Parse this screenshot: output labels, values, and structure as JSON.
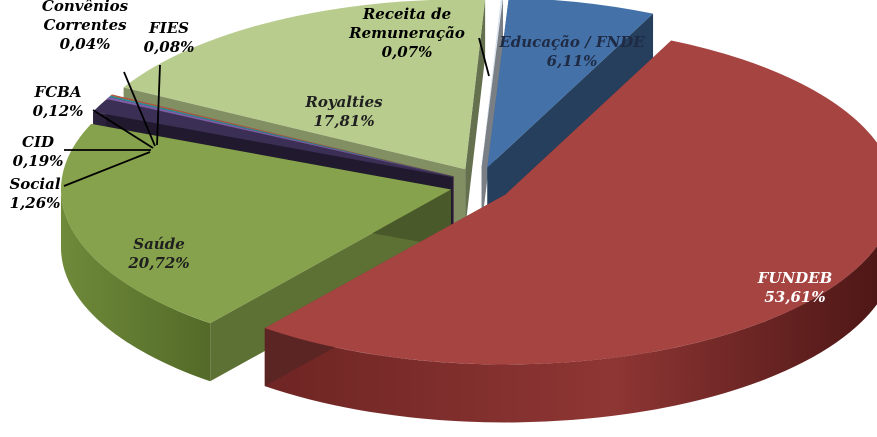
{
  "chart_data": {
    "type": "pie",
    "title": "",
    "slices": [
      {
        "name": "Educação / FNDE",
        "label": "Educação / FNDE",
        "value": 6.11,
        "value_label": "6,11%",
        "color": "#4472a8"
      },
      {
        "name": "FUNDEB",
        "label": "FUNDEB",
        "value": 53.61,
        "value_label": "53,61%",
        "color": "#a64441"
      },
      {
        "name": "Saúde",
        "label": "Saúde",
        "value": 20.72,
        "value_label": "20,72%",
        "color": "#86a24c"
      },
      {
        "name": "Social",
        "label": "Social",
        "value": 1.26,
        "value_label": "1,26%",
        "color": "#3c2f55"
      },
      {
        "name": "CID",
        "label": "CID",
        "value": 0.19,
        "value_label": "0,19%",
        "color": "#7f5fa8"
      },
      {
        "name": "FCBA",
        "label": "FCBA",
        "value": 0.12,
        "value_label": "0,12%",
        "color": "#2e8e9c"
      },
      {
        "name": "Convênios Correntes",
        "label": "Convênios Correntes",
        "value": 0.04,
        "value_label": "0,04%",
        "color": "#d08030"
      },
      {
        "name": "FIES",
        "label": "FIES",
        "value": 0.08,
        "value_label": "0,08%",
        "color": "#c0504d"
      },
      {
        "name": "Royalties",
        "label": "Royalties",
        "value": 17.81,
        "value_label": "17,81%",
        "color": "#b8cc8e"
      },
      {
        "name": "Receita de Remuneração",
        "label": "Receita de Remuneração",
        "value": 0.07,
        "value_label": "0,07%",
        "color": "#dce6f2"
      }
    ],
    "legend": "none",
    "style": "3d-exploded-pie"
  }
}
